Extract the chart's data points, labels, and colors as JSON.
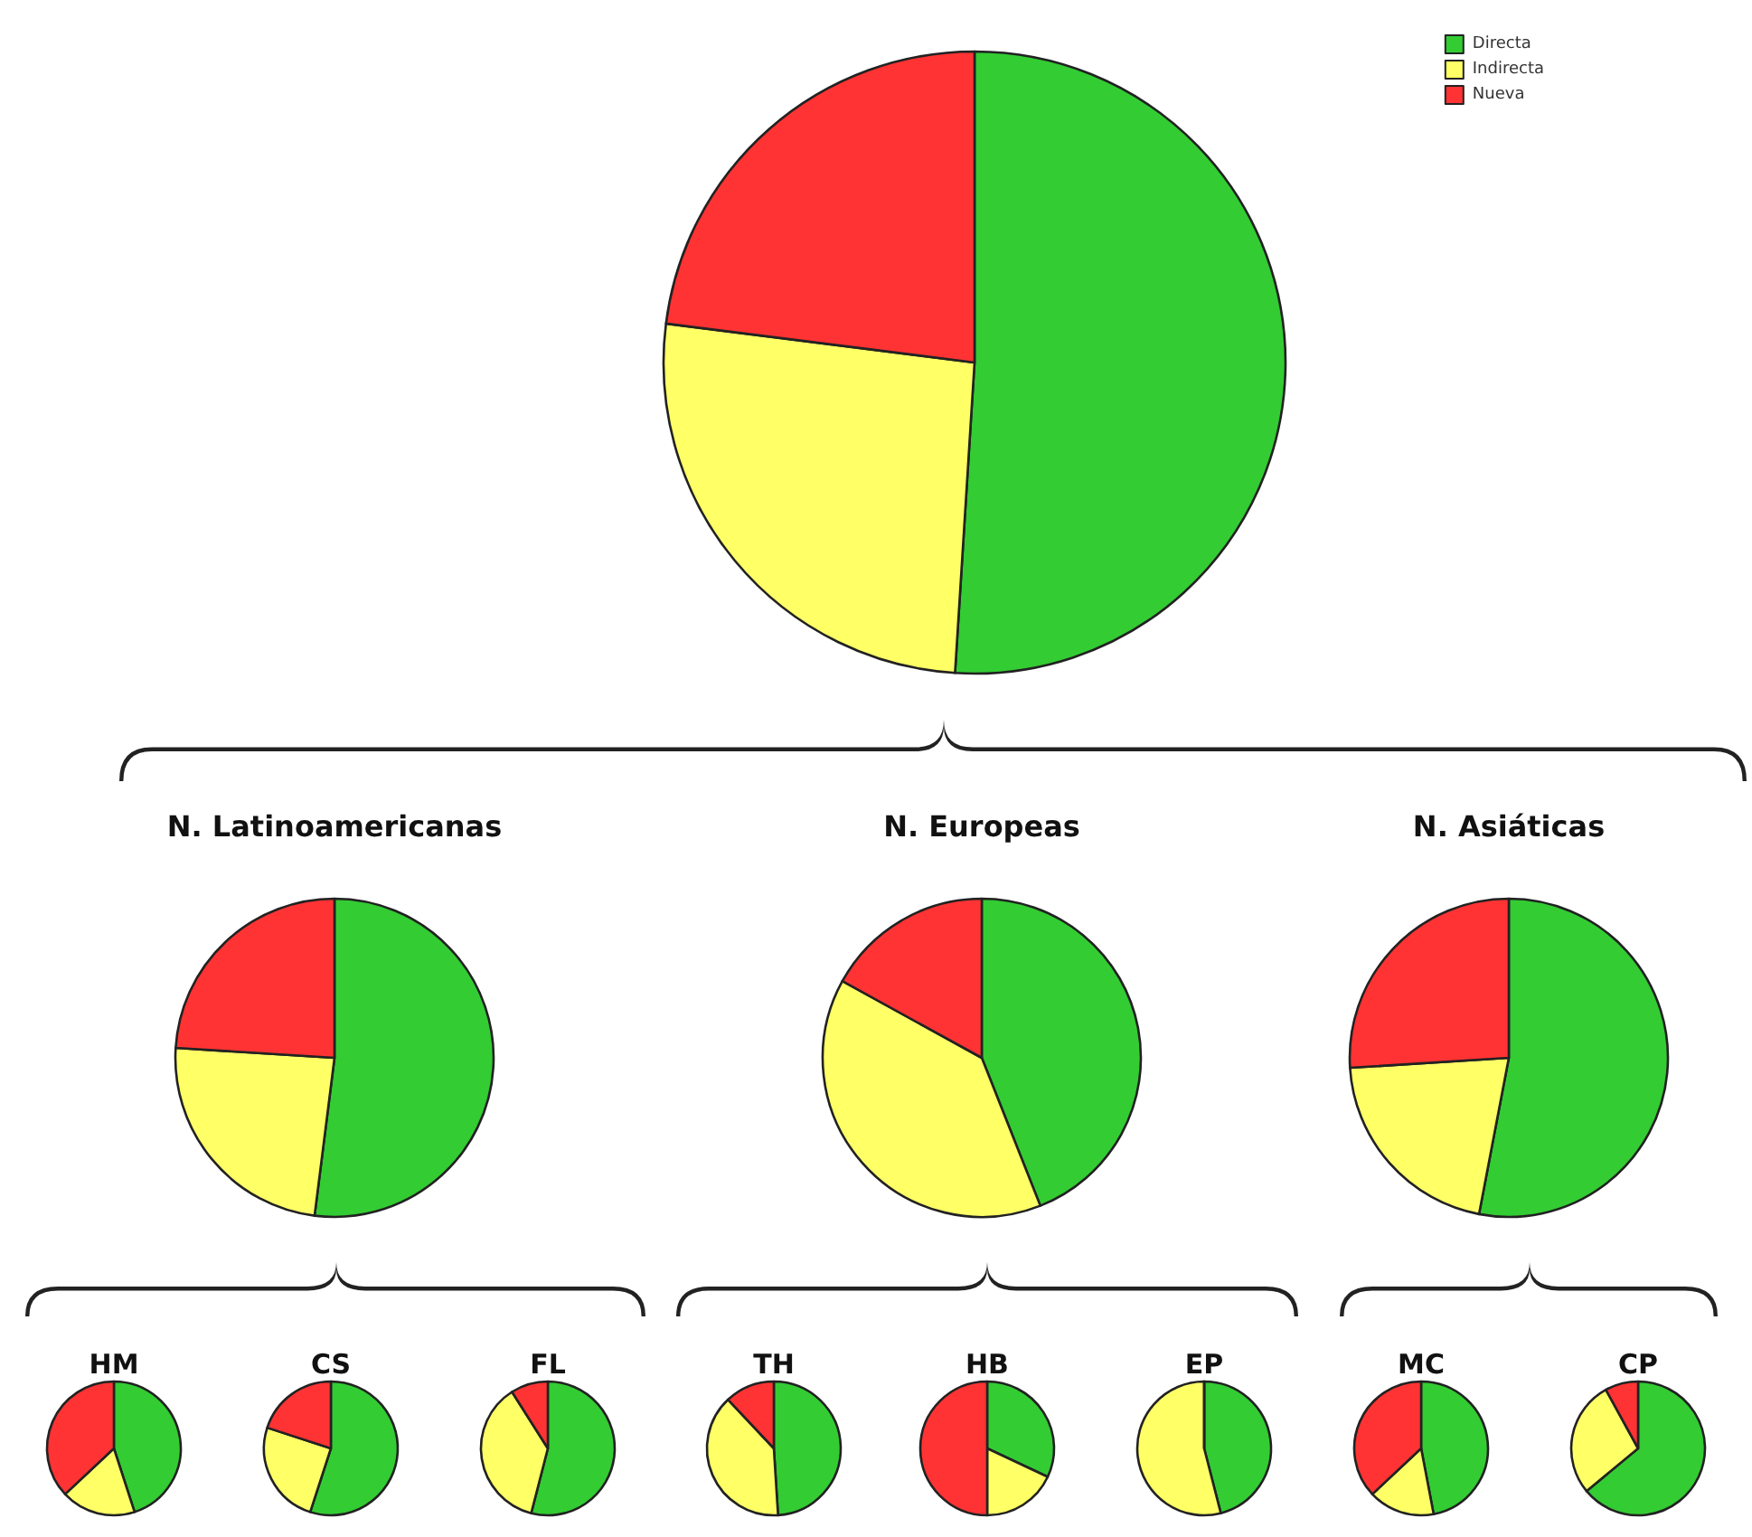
{
  "chart_data": [
    {
      "type": "pie",
      "categories": [
        "Directa",
        "Indirecta",
        "Nueva"
      ],
      "values": [
        51,
        26,
        23
      ],
      "colors": [
        "#33cc33",
        "#ffff66",
        "#ff3333"
      ],
      "legend": "top right"
    },
    {
      "type": "pie",
      "title": "N. Latinoamericanas",
      "categories": [
        null,
        null,
        null
      ],
      "values": [
        52,
        24,
        24
      ],
      "colors": [
        "#33cc33",
        "#ffff66",
        "#ff3333"
      ]
    },
    {
      "type": "pie",
      "title": "N. Europeas",
      "categories": [
        null,
        null,
        null
      ],
      "values": [
        44,
        39,
        17
      ],
      "colors": [
        "#33cc33",
        "#ffff66",
        "#ff3333"
      ]
    },
    {
      "type": "pie",
      "title": "N. Asiáticas",
      "categories": [
        null,
        null,
        null
      ],
      "values": [
        53,
        21,
        26
      ],
      "colors": [
        "#33cc33",
        "#ffff66",
        "#ff3333"
      ]
    },
    {
      "type": "pie",
      "title": "HM",
      "categories": [
        null,
        null,
        null
      ],
      "values": [
        45,
        18,
        37
      ],
      "colors": [
        "#33cc33",
        "#ffff66",
        "#ff3333"
      ]
    },
    {
      "type": "pie",
      "title": "CS",
      "categories": [
        null,
        null,
        null
      ],
      "values": [
        55,
        25,
        20
      ],
      "colors": [
        "#33cc33",
        "#ffff66",
        "#ff3333"
      ]
    },
    {
      "type": "pie",
      "title": "FL",
      "categories": [
        null,
        null,
        null
      ],
      "values": [
        54,
        37,
        9
      ],
      "colors": [
        "#33cc33",
        "#ffff66",
        "#ff3333"
      ]
    },
    {
      "type": "pie",
      "title": "TH",
      "categories": [
        null,
        null,
        null
      ],
      "values": [
        49,
        39,
        12
      ],
      "colors": [
        "#33cc33",
        "#ffff66",
        "#ff3333"
      ]
    },
    {
      "type": "pie",
      "title": "HB",
      "categories": [
        null,
        null,
        null
      ],
      "values": [
        32,
        18,
        50
      ],
      "colors": [
        "#33cc33",
        "#ffff66",
        "#ff3333"
      ]
    },
    {
      "type": "pie",
      "title": "EP",
      "categories": [
        null,
        null,
        null
      ],
      "values": [
        46,
        54,
        0
      ],
      "colors": [
        "#33cc33",
        "#ffff66",
        "#ff3333"
      ]
    },
    {
      "type": "pie",
      "title": "MC",
      "categories": [
        null,
        null,
        null
      ],
      "values": [
        47,
        16,
        37
      ],
      "colors": [
        "#33cc33",
        "#ffff66",
        "#ff3333"
      ]
    },
    {
      "type": "pie",
      "title": "CP",
      "categories": [
        null,
        null,
        null
      ],
      "values": [
        64,
        28,
        8
      ],
      "colors": [
        "#33cc33",
        "#ffff66",
        "#ff3333"
      ]
    }
  ]
}
